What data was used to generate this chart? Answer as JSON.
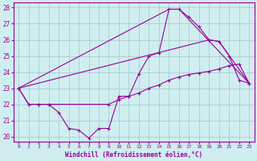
{
  "xlabel": "Windchill (Refroidissement éolien,°C)",
  "xlim": [
    -0.5,
    23.5
  ],
  "ylim": [
    19.7,
    28.3
  ],
  "yticks": [
    20,
    21,
    22,
    23,
    24,
    25,
    26,
    27,
    28
  ],
  "xticks": [
    0,
    1,
    2,
    3,
    4,
    5,
    6,
    7,
    8,
    9,
    10,
    11,
    12,
    13,
    14,
    15,
    16,
    17,
    18,
    19,
    20,
    21,
    22,
    23
  ],
  "background_color": "#d0eef0",
  "line_color": "#990099",
  "grid_color": "#a0c8cc",
  "series": {
    "line1_x": [
      0,
      1,
      2,
      3,
      4,
      5,
      6,
      7,
      8,
      9,
      10,
      11,
      12,
      13,
      14,
      15,
      16,
      17,
      18,
      19,
      20,
      21,
      22,
      23
    ],
    "line1_y": [
      23,
      22,
      22,
      22,
      21.5,
      20.5,
      20.4,
      19.9,
      20.5,
      20.5,
      22.5,
      22.5,
      23.9,
      25,
      25.2,
      27.9,
      27.9,
      27.4,
      26.8,
      26.0,
      25.9,
      25.0,
      23.5,
      23.3
    ],
    "line2_x": [
      0,
      1,
      2,
      3,
      9,
      10,
      11,
      12,
      13,
      14,
      15,
      16,
      17,
      18,
      19,
      20,
      21,
      22,
      23
    ],
    "line2_y": [
      23,
      22,
      22,
      22,
      22,
      22.3,
      22.5,
      22.7,
      23.0,
      23.2,
      23.5,
      23.7,
      23.85,
      23.95,
      24.05,
      24.2,
      24.4,
      24.5,
      23.3
    ],
    "line3_x": [
      0,
      15,
      16,
      23
    ],
    "line3_y": [
      23,
      27.9,
      27.9,
      23.3
    ],
    "line4_x": [
      0,
      19,
      20,
      23
    ],
    "line4_y": [
      23,
      26.0,
      25.9,
      23.3
    ]
  }
}
